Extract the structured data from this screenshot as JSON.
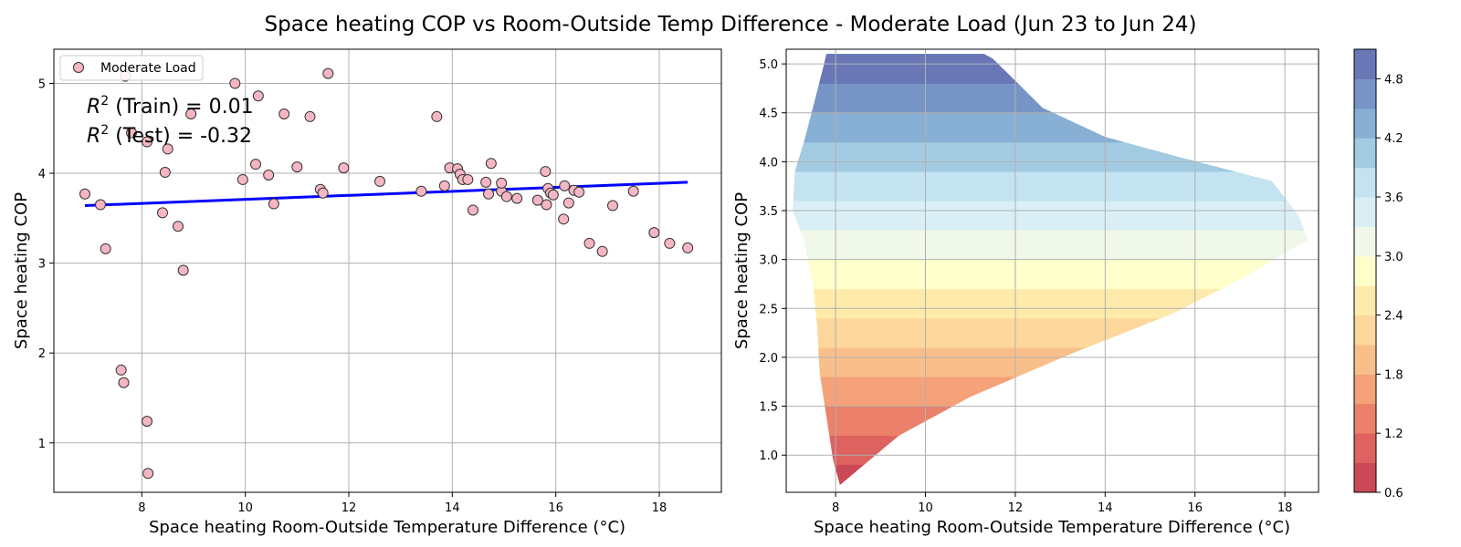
{
  "figure": {
    "title": "Space heating COP vs Room-Outside Temp Difference - Moderate Load (Jun 23 to Jun 24)"
  },
  "chart_data": [
    {
      "type": "scatter",
      "xlabel": "Space heating Room-Outside Temperature Difference (°C)",
      "ylabel": "Space heating COP",
      "xlim": [
        6.3,
        19.2
      ],
      "ylim": [
        0.45,
        5.38
      ],
      "xticks": [
        8,
        10,
        12,
        14,
        16,
        18
      ],
      "yticks": [
        1,
        2,
        3,
        4,
        5
      ],
      "grid": true,
      "legend": {
        "placement": "upper-left",
        "entries": [
          "Moderate Load"
        ]
      },
      "annotations": [
        "R² (Train) = 0.01",
        "R² (Test) = -0.32"
      ],
      "annotation_parts": [
        {
          "prefix": "R",
          "sup": "2",
          "rest": " (Train) = 0.01"
        },
        {
          "prefix": "R",
          "sup": "2",
          "rest": " (Test) = -0.32"
        }
      ],
      "series": [
        {
          "name": "Moderate Load",
          "marker_color": "#f4b6c2",
          "edge_color": "#333333",
          "x": [
            6.9,
            7.2,
            7.3,
            7.6,
            7.65,
            7.68,
            7.8,
            8.1,
            8.1,
            8.12,
            8.4,
            8.45,
            8.5,
            8.7,
            8.8,
            8.95,
            9.8,
            9.95,
            10.2,
            10.25,
            10.45,
            10.55,
            10.75,
            11.0,
            11.25,
            11.45,
            11.5,
            11.6,
            11.9,
            12.6,
            13.4,
            13.7,
            13.85,
            13.95,
            14.1,
            14.15,
            14.2,
            14.3,
            14.4,
            14.65,
            14.7,
            14.75,
            14.95,
            14.95,
            15.05,
            15.25,
            15.65,
            15.8,
            15.82,
            15.85,
            15.9,
            15.95,
            16.15,
            16.17,
            16.25,
            16.35,
            16.45,
            16.65,
            16.9,
            17.1,
            17.5,
            17.9,
            18.2,
            18.55
          ],
          "y": [
            3.77,
            3.65,
            3.16,
            1.81,
            1.67,
            5.08,
            4.45,
            4.35,
            1.24,
            0.66,
            3.56,
            4.01,
            4.27,
            3.41,
            2.92,
            4.66,
            5.0,
            3.93,
            4.1,
            4.86,
            3.98,
            3.66,
            4.66,
            4.07,
            4.63,
            3.82,
            3.78,
            5.11,
            4.06,
            3.91,
            3.8,
            4.63,
            3.86,
            4.06,
            4.05,
            3.99,
            3.93,
            3.93,
            3.59,
            3.9,
            3.77,
            4.11,
            3.8,
            3.89,
            3.74,
            3.72,
            3.7,
            4.02,
            3.65,
            3.83,
            3.78,
            3.76,
            3.49,
            3.86,
            3.67,
            3.81,
            3.79,
            3.22,
            3.13,
            3.64,
            3.8,
            3.34,
            3.22,
            3.17
          ]
        }
      ],
      "fit_line": {
        "x": [
          6.9,
          18.55
        ],
        "y": [
          3.64,
          3.9
        ],
        "color": "#0000ff"
      }
    },
    {
      "type": "heatmap",
      "xlabel": "Space heating Room-Outside Temperature Difference (°C)",
      "ylabel": "Space heating COP",
      "xlim": [
        6.9,
        18.75
      ],
      "ylim": [
        0.62,
        5.15
      ],
      "xticks": [
        8,
        10,
        12,
        14,
        16,
        18
      ],
      "yticks": [
        1.0,
        1.5,
        2.0,
        2.5,
        3.0,
        3.5,
        4.0,
        4.5,
        5.0
      ],
      "ytick_labels": [
        "1.0",
        "1.5",
        "2.0",
        "2.5",
        "3.0",
        "3.5",
        "4.0",
        "4.5",
        "5.0"
      ],
      "grid": true,
      "colorbar": {
        "levels": [
          0.6,
          0.9,
          1.2,
          1.5,
          1.8,
          2.1,
          2.4,
          2.7,
          3.0,
          3.3,
          3.6,
          3.9,
          4.2,
          4.5,
          4.8,
          5.1
        ],
        "tick_values": [
          0.6,
          1.2,
          1.8,
          2.4,
          3.0,
          3.6,
          4.2,
          4.8
        ],
        "tick_labels": [
          "0.6",
          "1.2",
          "1.8",
          "2.4",
          "3.0",
          "3.6",
          "4.2",
          "4.8"
        ],
        "colors": [
          "#c83e4d",
          "#dc5a56",
          "#ea7a62",
          "#f49c72",
          "#f9bc84",
          "#fdd596",
          "#feeaa6",
          "#ffffc8",
          "#eff8e8",
          "#d8eef4",
          "#bfe1ee",
          "#9dc8e0",
          "#82acd3",
          "#6f8fc3",
          "#6270b3"
        ],
        "alpha": 0.95
      },
      "domain_boundary": {
        "left": [
          [
            8.1,
            0.7
          ],
          [
            7.95,
            0.95
          ],
          [
            7.8,
            1.4
          ],
          [
            7.65,
            1.85
          ],
          [
            7.6,
            2.3
          ],
          [
            7.5,
            2.75
          ],
          [
            7.3,
            3.2
          ],
          [
            7.05,
            3.5
          ],
          [
            7.1,
            3.9
          ],
          [
            7.3,
            4.2
          ],
          [
            7.5,
            4.55
          ],
          [
            7.75,
            5.0
          ],
          [
            7.8,
            5.1
          ]
        ],
        "right": [
          [
            8.1,
            0.7
          ],
          [
            9.4,
            1.2
          ],
          [
            11.0,
            1.6
          ],
          [
            13.3,
            2.05
          ],
          [
            15.5,
            2.45
          ],
          [
            17.0,
            2.8
          ],
          [
            18.5,
            3.2
          ],
          [
            18.3,
            3.45
          ],
          [
            17.7,
            3.8
          ],
          [
            15.6,
            4.05
          ],
          [
            14.0,
            4.25
          ],
          [
            12.6,
            4.55
          ],
          [
            11.5,
            5.05
          ],
          [
            11.3,
            5.1
          ]
        ]
      }
    }
  ]
}
